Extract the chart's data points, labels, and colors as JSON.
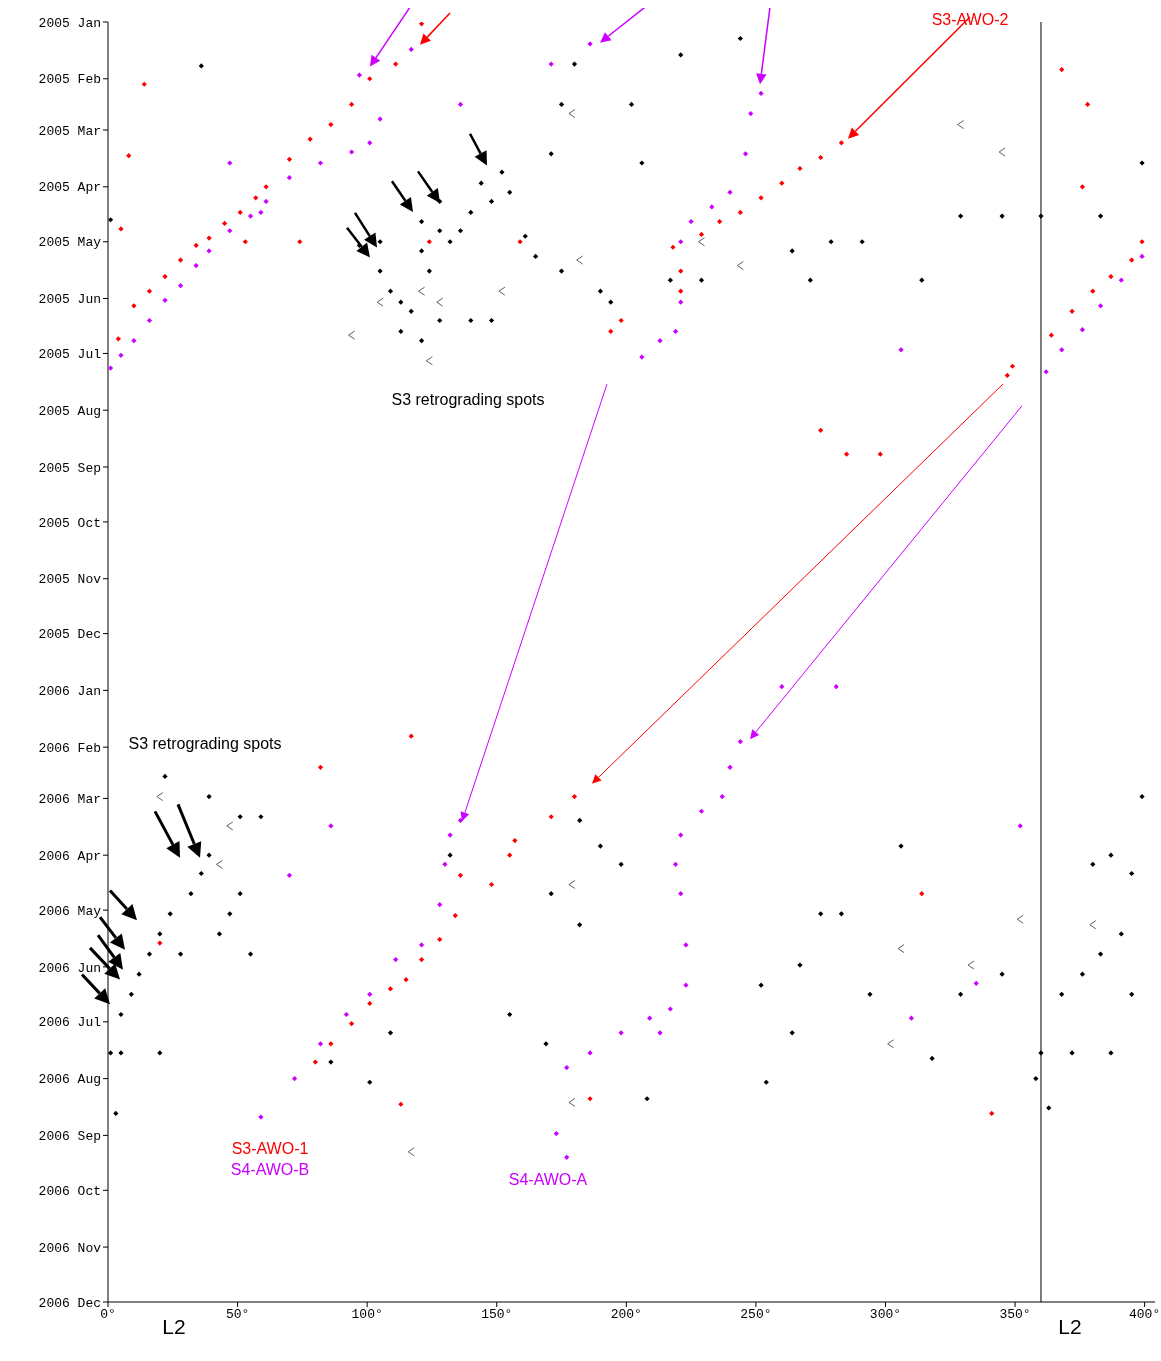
{
  "chart_data": {
    "type": "scatter",
    "marker": "diamond",
    "orientation": "horizontal",
    "xlim": [
      0,
      404
    ],
    "xticks": [
      {
        "value": 0,
        "label": "0°"
      },
      {
        "value": 50,
        "label": "50°"
      },
      {
        "value": 100,
        "label": "100°"
      },
      {
        "value": 150,
        "label": "150°"
      },
      {
        "value": 200,
        "label": "200°"
      },
      {
        "value": 250,
        "label": "250°"
      },
      {
        "value": 300,
        "label": "300°"
      },
      {
        "value": 350,
        "label": "350°"
      },
      {
        "value": 400,
        "label": "400°"
      }
    ],
    "ylim": [
      "2006-12-01",
      "2005-01-01"
    ],
    "yticks": [
      {
        "value": "2005-01",
        "label": "2005 Jan"
      },
      {
        "value": "2005-02",
        "label": "2005 Feb"
      },
      {
        "value": "2005-03",
        "label": "2005 Mar"
      },
      {
        "value": "2005-04",
        "label": "2005 Apr"
      },
      {
        "value": "2005-05",
        "label": "2005 May"
      },
      {
        "value": "2005-06",
        "label": "2005 Jun"
      },
      {
        "value": "2005-07",
        "label": "2005 Jul"
      },
      {
        "value": "2005-08",
        "label": "2005 Aug"
      },
      {
        "value": "2005-09",
        "label": "2005 Sep"
      },
      {
        "value": "2005-10",
        "label": "2005 Oct"
      },
      {
        "value": "2005-11",
        "label": "2005 Nov"
      },
      {
        "value": "2005-12",
        "label": "2005 Dec"
      },
      {
        "value": "2006-01",
        "label": "2006 Jan"
      },
      {
        "value": "2006-02",
        "label": "2006 Feb"
      },
      {
        "value": "2006-03",
        "label": "2006 Mar"
      },
      {
        "value": "2006-04",
        "label": "2006 Apr"
      },
      {
        "value": "2006-05",
        "label": "2006 May"
      },
      {
        "value": "2006-06",
        "label": "2006 Jun"
      },
      {
        "value": "2006-07",
        "label": "2006 Jul"
      },
      {
        "value": "2006-08",
        "label": "2006 Aug"
      },
      {
        "value": "2006-09",
        "label": "2006 Sep"
      },
      {
        "value": "2006-10",
        "label": "2006 Oct"
      },
      {
        "value": "2006-11",
        "label": "2006 Nov"
      },
      {
        "value": "2006-12",
        "label": "2006 Dec"
      }
    ],
    "ref_lines": [
      {
        "axis": "x",
        "value": 360,
        "color": "#000000"
      }
    ],
    "annotations": [
      "S3 retrograding spots",
      "S3 retrograding spots",
      "S3-AWO-1",
      "S4-AWO-B",
      "S4-AWO-A",
      "S3-AWO-2",
      "L2",
      "L2"
    ],
    "series": [
      {
        "color": "#000000",
        "values": [
          105,
          109,
          113,
          117,
          121,
          124,
          128,
          132,
          136,
          140,
          144,
          148,
          152,
          155,
          161,
          165,
          171,
          175,
          180,
          190,
          194,
          175,
          113,
          121,
          128,
          140,
          148,
          121,
          97,
          105,
          128,
          202,
          206,
          221,
          244,
          264,
          271,
          279,
          291,
          314,
          329,
          345,
          36,
          399,
          217,
          360,
          383,
          1,
          229,
          5,
          9,
          12,
          16,
          20,
          24,
          28,
          32,
          36,
          39,
          43,
          47,
          51,
          55,
          22,
          39,
          51,
          59,
          5,
          20,
          86,
          101,
          109,
          132,
          155,
          169,
          171,
          182,
          190,
          198,
          252,
          267,
          283,
          294,
          329,
          345,
          368,
          376,
          383,
          391,
          395,
          360,
          372,
          387,
          380,
          387,
          395,
          399,
          1,
          3,
          208,
          254,
          318,
          358,
          363,
          306,
          275,
          182,
          264
        ],
        "x": [
          "2005-05-01",
          "2005-05-28",
          "2005-06-03",
          "2005-06-08",
          "2005-05-06",
          "2005-05-17",
          "2005-04-25",
          "2005-05-01",
          "2005-04-25",
          "2005-04-15",
          "2005-03-30",
          "2005-04-09",
          "2005-03-24",
          "2005-04-04",
          "2005-04-28",
          "2005-05-09",
          "2005-03-14",
          "2005-02-15",
          "2005-01-24",
          "2005-05-28",
          "2005-06-03",
          "2005-05-17",
          "2005-06-19",
          "2005-06-24",
          "2005-06-13",
          "2005-06-13",
          "2005-06-13",
          "2005-04-20",
          "2005-05-03",
          "2005-05-17",
          "2005-04-09",
          "2005-02-15",
          "2005-03-19",
          "2005-01-19",
          "2005-01-10",
          "2005-05-06",
          "2005-05-22",
          "2005-05-01",
          "2005-05-01",
          "2005-05-22",
          "2005-04-17",
          "2005-04-17",
          "2005-01-25",
          "2005-03-19",
          "2005-05-22",
          "2005-04-17",
          "2005-04-17",
          "2005-04-19",
          "2005-05-22",
          "2006-06-27",
          "2006-06-16",
          "2006-06-05",
          "2006-05-25",
          "2006-05-14",
          "2006-05-03",
          "2006-05-25",
          "2006-04-22",
          "2006-04-11",
          "2006-04-01",
          "2006-05-14",
          "2006-05-03",
          "2006-04-22",
          "2006-05-25",
          "2006-02-17",
          "2006-02-28",
          "2006-03-11",
          "2006-03-11",
          "2006-07-18",
          "2006-07-18",
          "2006-07-23",
          "2006-08-03",
          "2006-07-07",
          "2006-04-01",
          "2006-06-27",
          "2006-07-13",
          "2006-04-22",
          "2006-05-09",
          "2006-03-27",
          "2006-04-06",
          "2006-06-11",
          "2006-05-31",
          "2006-05-03",
          "2006-06-16",
          "2006-06-16",
          "2006-06-05",
          "2006-06-16",
          "2006-06-05",
          "2006-05-25",
          "2006-05-14",
          "2006-06-16",
          "2006-07-18",
          "2006-07-18",
          "2006-07-18",
          "2006-04-06",
          "2006-04-01",
          "2006-04-11",
          "2006-02-28",
          "2006-07-18",
          "2006-08-20",
          "2006-08-12",
          "2006-08-03",
          "2006-07-21",
          "2006-08-01",
          "2006-08-17",
          "2006-03-27",
          "2006-05-03",
          "2006-03-13",
          "2006-07-07"
        ]
      },
      {
        "color": "#606060",
        "marker": "cross",
        "values": [
          105,
          121,
          128,
          152,
          179,
          182,
          229,
          244,
          20,
          47,
          43,
          179,
          306,
          333,
          352,
          380,
          345,
          329,
          94,
          124,
          179,
          117,
          302
        ],
        "x": [
          "2005-06-03",
          "2005-05-28",
          "2005-06-03",
          "2005-05-28",
          "2005-02-20",
          "2005-05-11",
          "2005-05-01",
          "2005-05-14",
          "2006-02-28",
          "2006-03-16",
          "2006-04-06",
          "2006-04-17",
          "2006-05-22",
          "2006-05-31",
          "2006-05-06",
          "2006-05-09",
          "2005-03-13",
          "2005-02-26",
          "2005-06-21",
          "2005-07-05",
          "2006-08-14",
          "2006-09-10",
          "2006-07-13"
        ]
      },
      {
        "color": "#ff0000",
        "values": [
          4,
          10,
          16,
          22,
          28,
          34,
          39,
          45,
          51,
          57,
          61,
          70,
          78,
          86,
          94,
          101,
          111,
          121,
          218,
          229,
          236,
          244,
          252,
          260,
          267,
          275,
          283,
          364,
          372,
          380,
          387,
          395,
          399,
          80,
          86,
          94,
          101,
          109,
          115,
          121,
          128,
          134,
          136,
          148,
          155,
          157,
          171,
          180,
          347,
          349,
          194,
          198,
          221,
          221,
          8,
          14,
          5,
          53,
          74,
          124,
          159,
          275,
          285,
          298,
          117,
          82,
          368,
          378,
          376,
          341,
          186,
          113,
          20,
          314
        ],
        "x": [
          "2005-06-23",
          "2005-06-05",
          "2005-05-28",
          "2005-05-20",
          "2005-05-11",
          "2005-05-03",
          "2005-04-29",
          "2005-04-21",
          "2005-04-15",
          "2005-04-07",
          "2005-04-01",
          "2005-03-17",
          "2005-03-06",
          "2005-02-26",
          "2005-02-15",
          "2005-02-01",
          "2005-01-24",
          "2005-01-02",
          "2005-05-04",
          "2005-04-27",
          "2005-04-20",
          "2005-04-15",
          "2005-04-07",
          "2005-03-30",
          "2005-03-22",
          "2005-03-16",
          "2005-03-08",
          "2005-06-21",
          "2005-06-08",
          "2005-05-28",
          "2005-05-20",
          "2005-05-11",
          "2005-05-01",
          "2006-07-23",
          "2006-07-13",
          "2006-07-02",
          "2006-06-21",
          "2006-06-13",
          "2006-06-08",
          "2006-05-28",
          "2006-05-17",
          "2006-05-04",
          "2006-04-12",
          "2006-04-17",
          "2006-04-01",
          "2006-03-24",
          "2006-03-11",
          "2006-02-28",
          "2005-07-13",
          "2005-07-08",
          "2005-06-19",
          "2005-06-13",
          "2005-05-28",
          "2005-05-17",
          "2005-03-15",
          "2005-02-04",
          "2005-04-24",
          "2005-05-01",
          "2005-05-01",
          "2005-05-01",
          "2005-05-01",
          "2005-08-12",
          "2005-08-25",
          "2005-08-25",
          "2006-01-26",
          "2006-02-12",
          "2005-01-27",
          "2005-02-15",
          "2005-04-01",
          "2006-08-20",
          "2006-08-12",
          "2006-08-15",
          "2006-05-19",
          "2006-04-22"
        ]
      },
      {
        "color": "#cc00ff",
        "values": [
          1,
          5,
          10,
          16,
          22,
          28,
          34,
          39,
          47,
          55,
          61,
          70,
          82,
          94,
          101,
          105,
          97,
          117,
          136,
          171,
          186,
          221,
          225,
          233,
          240,
          246,
          248,
          252,
          221,
          219,
          213,
          206,
          362,
          368,
          376,
          383,
          391,
          399,
          59,
          72,
          82,
          92,
          101,
          111,
          121,
          128,
          130,
          132,
          136,
          177,
          186,
          198,
          209,
          217,
          223,
          223,
          221,
          219,
          221,
          229,
          237,
          240,
          244,
          260,
          281,
          173,
          177,
          70,
          86,
          213,
          352,
          335,
          310,
          59,
          306,
          47
        ],
        "x": [
          "2005-07-09",
          "2005-07-02",
          "2005-06-24",
          "2005-06-13",
          "2005-06-02",
          "2005-05-25",
          "2005-05-14",
          "2005-05-06",
          "2005-04-25",
          "2005-04-17",
          "2005-04-09",
          "2005-03-27",
          "2005-03-19",
          "2005-03-13",
          "2005-03-08",
          "2005-02-23",
          "2005-01-30",
          "2005-01-16",
          "2005-02-15",
          "2005-01-24",
          "2005-01-13",
          "2005-05-01",
          "2005-04-20",
          "2005-04-12",
          "2005-04-04",
          "2005-03-14",
          "2005-02-20",
          "2005-02-09",
          "2005-06-03",
          "2005-06-19",
          "2005-06-24",
          "2005-07-03",
          "2005-07-11",
          "2005-06-29",
          "2005-06-18",
          "2005-06-05",
          "2005-05-22",
          "2005-05-09",
          "2006-08-22",
          "2006-08-01",
          "2006-07-13",
          "2006-06-27",
          "2006-06-16",
          "2006-05-28",
          "2006-05-20",
          "2006-04-28",
          "2006-04-06",
          "2006-03-21",
          "2006-03-13",
          "2006-07-26",
          "2006-07-18",
          "2006-07-07",
          "2006-06-29",
          "2006-06-24",
          "2006-06-11",
          "2006-05-20",
          "2006-04-22",
          "2006-04-06",
          "2006-03-21",
          "2006-03-08",
          "2006-02-28",
          "2006-02-12",
          "2006-01-29",
          "2005-12-30",
          "2005-12-30",
          "2006-08-31",
          "2006-09-13",
          "2006-04-12",
          "2006-03-16",
          "2006-07-07",
          "2006-03-16",
          "2006-06-10",
          "2006-06-29",
          "2005-04-15",
          "2005-06-29",
          "2005-03-19"
        ]
      }
    ]
  }
}
